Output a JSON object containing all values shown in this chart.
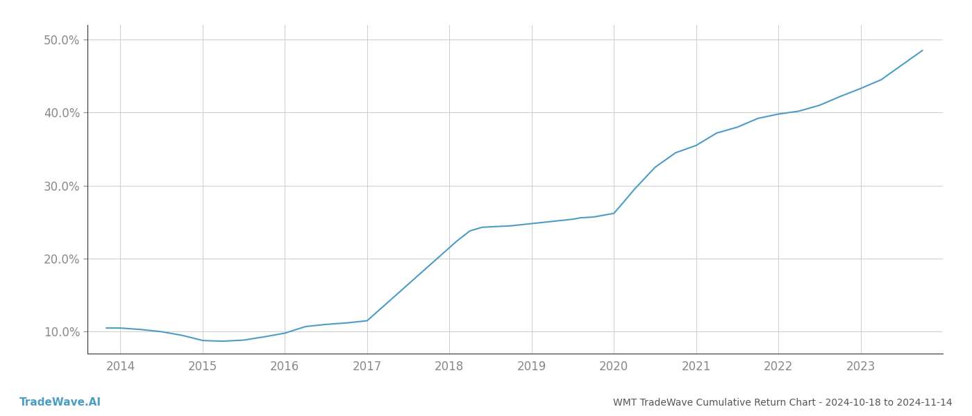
{
  "title_right": "WMT TradeWave Cumulative Return Chart - 2024-10-18 to 2024-11-14",
  "title_left": "TradeWave.AI",
  "line_color": "#4a9cc7",
  "background_color": "#ffffff",
  "grid_color": "#cccccc",
  "x_years": [
    2014,
    2015,
    2016,
    2017,
    2018,
    2019,
    2020,
    2021,
    2022,
    2023
  ],
  "x_values": [
    2013.83,
    2014.0,
    2014.25,
    2014.5,
    2014.75,
    2015.0,
    2015.1,
    2015.25,
    2015.5,
    2015.75,
    2016.0,
    2016.25,
    2016.5,
    2016.75,
    2017.0,
    2017.25,
    2017.5,
    2017.75,
    2018.0,
    2018.1,
    2018.25,
    2018.4,
    2018.75,
    2019.0,
    2019.25,
    2019.5,
    2019.6,
    2019.75,
    2020.0,
    2020.1,
    2020.25,
    2020.5,
    2020.75,
    2021.0,
    2021.25,
    2021.5,
    2021.75,
    2022.0,
    2022.25,
    2022.5,
    2022.75,
    2023.0,
    2023.25,
    2023.5,
    2023.75
  ],
  "y_values": [
    10.5,
    10.5,
    10.3,
    10.0,
    9.5,
    8.8,
    8.75,
    8.7,
    8.85,
    9.3,
    9.8,
    10.7,
    11.0,
    11.2,
    11.5,
    14.0,
    16.5,
    19.0,
    21.5,
    22.5,
    23.8,
    24.3,
    24.5,
    24.8,
    25.1,
    25.4,
    25.6,
    25.7,
    26.2,
    27.5,
    29.5,
    32.5,
    34.5,
    35.5,
    37.2,
    38.0,
    39.2,
    39.8,
    40.2,
    41.0,
    42.2,
    43.3,
    44.5,
    46.5,
    48.5
  ],
  "ylim": [
    7.0,
    52.0
  ],
  "xlim": [
    2013.6,
    2024.0
  ],
  "yticks": [
    10.0,
    20.0,
    30.0,
    40.0,
    50.0
  ],
  "ytick_labels": [
    "10.0%",
    "20.0%",
    "30.0%",
    "40.0%",
    "50.0%"
  ],
  "line_width": 1.5,
  "text_color": "#888888",
  "title_left_color": "#4a9cc7",
  "title_right_color": "#555555",
  "axis_color": "#aaaaaa",
  "left_spine_color": "#333333"
}
